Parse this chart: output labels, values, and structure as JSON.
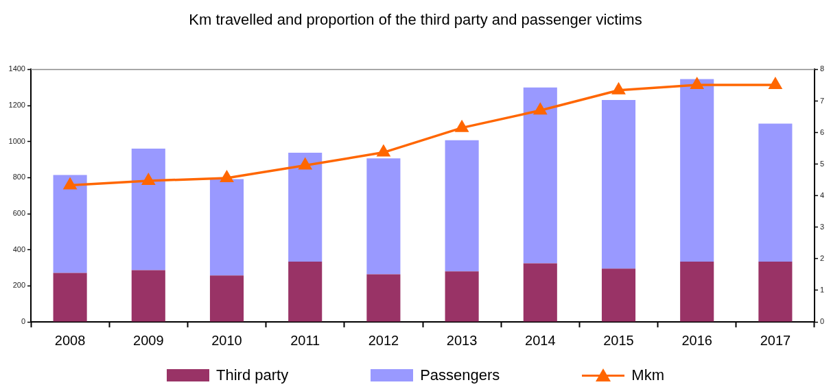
{
  "chart_data": {
    "type": "bar",
    "title": "Km travelled and proportion of the third party and passenger victims",
    "categories": [
      "2008",
      "2009",
      "2010",
      "2011",
      "2012",
      "2013",
      "2014",
      "2015",
      "2016",
      "2017"
    ],
    "stacked": true,
    "series": [
      {
        "name": "Third party",
        "color": "#993366",
        "values": [
          272,
          287,
          257,
          334,
          264,
          280,
          325,
          295,
          334,
          334
        ]
      },
      {
        "name": "Passengers",
        "color": "#9999ff",
        "values": [
          543,
          674,
          535,
          604,
          643,
          727,
          975,
          936,
          1012,
          766
        ]
      },
      {
        "name": "Mkm",
        "type": "line",
        "axis": "y2",
        "color": "#ff6600",
        "values": [
          4.33,
          4.47,
          4.56,
          4.96,
          5.37,
          6.15,
          6.7,
          7.34,
          7.51,
          7.51
        ]
      }
    ],
    "ylim": [
      0,
      1400
    ],
    "yticks": [
      0,
      200,
      400,
      600,
      800,
      1000,
      1200,
      1400
    ],
    "y2lim": [
      0,
      8
    ],
    "y2ticks": [
      0,
      1,
      2,
      3,
      4,
      5,
      6,
      7,
      8
    ],
    "marker": "triangle",
    "legend": "bottom"
  }
}
